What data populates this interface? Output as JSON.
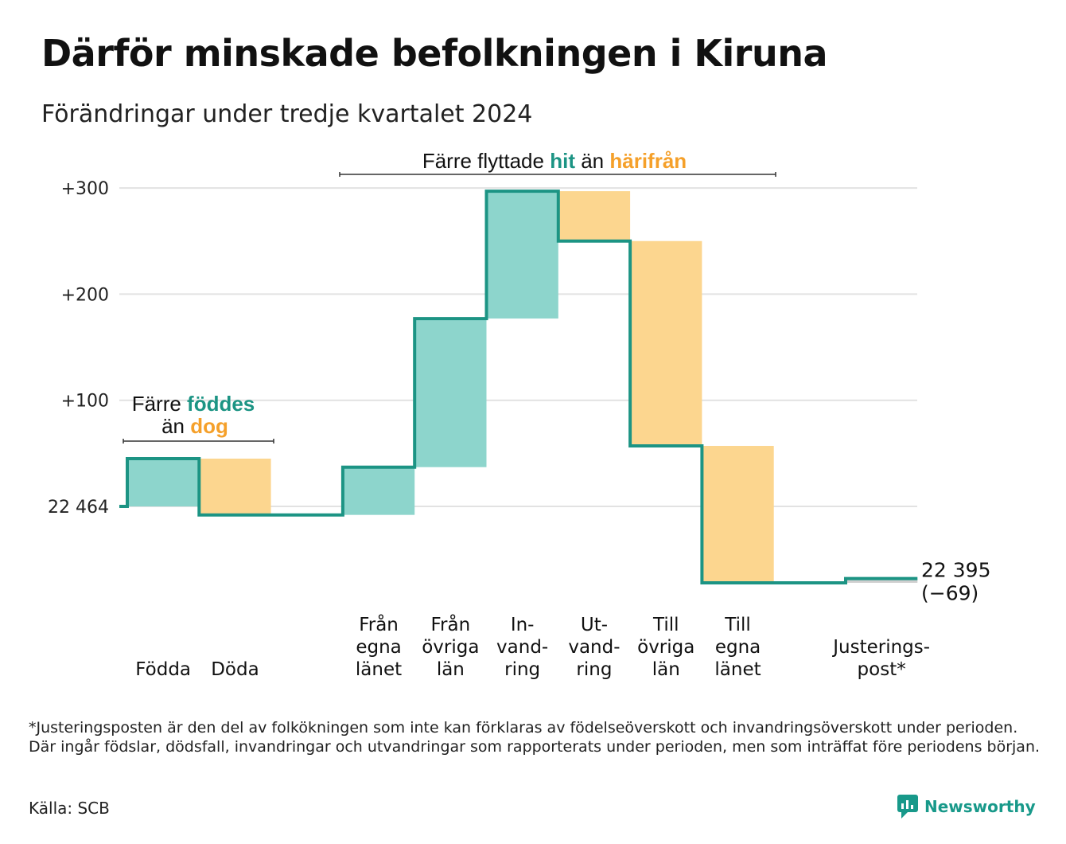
{
  "header": {
    "title": "Därför minskade befolkningen i Kiruna",
    "subtitle": "Förändringar under tredje kvartalet 2024"
  },
  "colors": {
    "increase": "#8dd5cc",
    "decrease": "#fcd68f",
    "line": "#1c9484",
    "teal_text": "#1c9484",
    "orange_text": "#f5a02a",
    "grid": "#e2e2e2"
  },
  "chart_data": {
    "type": "waterfall",
    "start_value": 22464,
    "start_label": "22 464",
    "end_value": 22395,
    "end_label": "22 395",
    "end_change_label": "(−69)",
    "y_ticks": [
      {
        "value": 0,
        "label": "22 464"
      },
      {
        "value": 100,
        "label": "+100"
      },
      {
        "value": 200,
        "label": "+200"
      },
      {
        "value": 300,
        "label": "+300"
      }
    ],
    "ylim": [
      -80,
      310
    ],
    "steps": [
      {
        "label": [
          "Födda"
        ],
        "change": 45,
        "kind": "increase"
      },
      {
        "label": [
          "Döda"
        ],
        "change": -53,
        "kind": "decrease"
      },
      {
        "label": [],
        "change": 0,
        "kind": "none"
      },
      {
        "label": [
          "Från",
          "egna",
          "länet"
        ],
        "change": 45,
        "kind": "increase"
      },
      {
        "label": [
          "Från",
          "övriga",
          "län"
        ],
        "change": 140,
        "kind": "increase"
      },
      {
        "label": [
          "In-",
          "vand-",
          "ring"
        ],
        "change": 120,
        "kind": "increase"
      },
      {
        "label": [
          "Ut-",
          "vand-",
          "ring"
        ],
        "change": -47,
        "kind": "decrease"
      },
      {
        "label": [
          "Till",
          "övriga",
          "län"
        ],
        "change": -193,
        "kind": "decrease"
      },
      {
        "label": [
          "Till",
          "egna",
          "länet"
        ],
        "change": -129,
        "kind": "decrease"
      },
      {
        "label": [],
        "change": 0,
        "kind": "none"
      },
      {
        "label": [
          "Justerings-",
          "post*"
        ],
        "change": 4,
        "kind": "adjustment"
      }
    ],
    "annotations": {
      "births": {
        "line1_prefix": "Färre ",
        "line1_teal": "föddes",
        "line2_prefix": "än ",
        "line2_orange": "dog"
      },
      "migration": {
        "prefix": "Färre flyttade ",
        "teal": "hit",
        "middle": " än ",
        "orange": "härifrån"
      }
    }
  },
  "footnote": "*Justeringsposten är den del av folkökningen som inte kan förklaras av födelseöverskott och invandringsöverskott under perioden. Där ingår födslar, dödsfall, invandringar och utvandringar som rapporterats under perioden, men som inträffat före periodens början.",
  "source": "Källa: SCB",
  "brand": {
    "name": "Newsworthy",
    "icon": "newsworthy-logo-icon"
  }
}
